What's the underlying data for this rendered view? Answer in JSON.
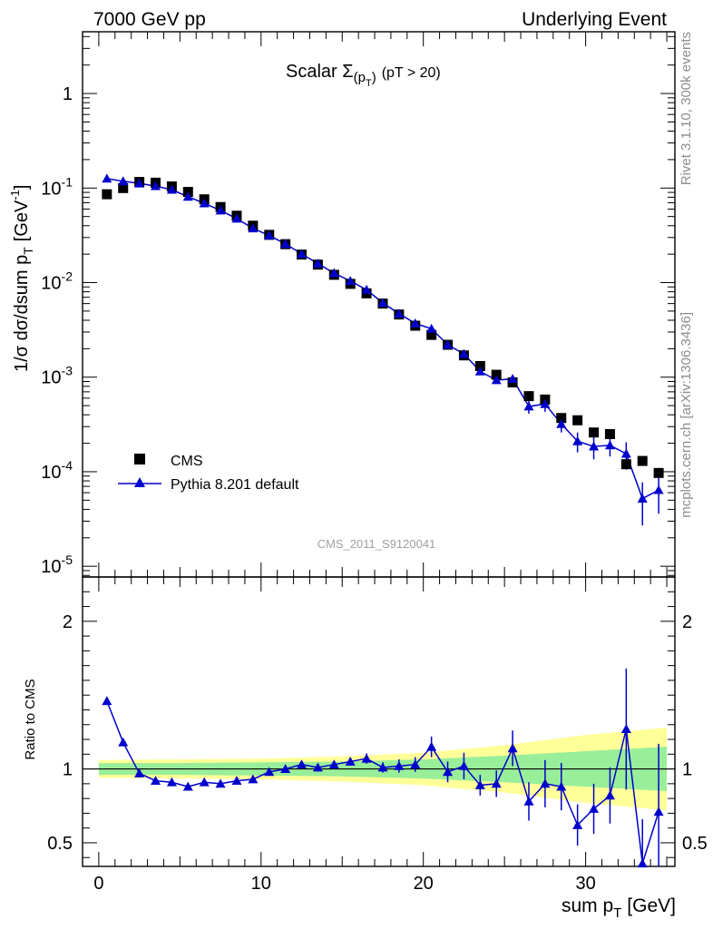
{
  "header": {
    "left": "7000 GeV pp",
    "right": "Underlying Event"
  },
  "plot_title": {
    "main": "Scalar Σ",
    "sub": "(p",
    "sub_t": "T",
    "sub_close": ")",
    "rest": "(pT > 20)"
  },
  "axis_labels": {
    "y_main": "1/σ dσ/dsum p",
    "y_main_sub": "T",
    "y_main_unit": "[GeV",
    "y_main_sup": "-1",
    "y_main_close": "]",
    "y_ratio": "Ratio to CMS",
    "x": "sum p",
    "x_sub": "T",
    "x_unit": "[GeV]"
  },
  "side_text": {
    "rivet": "Rivet 3.1.10,  300k events",
    "mcplots": "mcplots.cern.ch [arXiv:1306.3436]"
  },
  "watermark": "CMS_2011_S9120041",
  "legend": [
    {
      "name": "CMS",
      "marker": "square",
      "color": "#000000"
    },
    {
      "name": "Pythia 8.201 default",
      "marker": "triangle",
      "color": "#0000cc"
    }
  ],
  "chart_data": [
    {
      "type": "scatter",
      "scale": "log",
      "xlim": [
        -1,
        35.5
      ],
      "ylim": [
        7.7e-06,
        4.5
      ],
      "y_ticks": [
        {
          "v": 1,
          "base": "1",
          "exp": ""
        },
        {
          "v": 0.1,
          "base": "10",
          "exp": "-1"
        },
        {
          "v": 0.01,
          "base": "10",
          "exp": "-2"
        },
        {
          "v": 0.001,
          "base": "10",
          "exp": "-3"
        },
        {
          "v": 0.0001,
          "base": "10",
          "exp": "-4"
        },
        {
          "v": 1e-05,
          "base": "10",
          "exp": "-5"
        }
      ],
      "x": [
        0.5,
        1.5,
        2.5,
        3.5,
        4.5,
        5.5,
        6.5,
        7.5,
        8.5,
        9.5,
        10.5,
        11.5,
        12.5,
        13.5,
        14.5,
        15.5,
        16.5,
        17.5,
        18.5,
        19.5,
        20.5,
        21.5,
        22.5,
        23.5,
        24.5,
        25.5,
        26.5,
        27.5,
        28.5,
        29.5,
        30.5,
        31.5,
        32.5,
        33.5,
        34.5
      ],
      "series": [
        {
          "name": "CMS",
          "values": [
            0.086,
            0.1,
            0.116,
            0.114,
            0.104,
            0.091,
            0.076,
            0.063,
            0.051,
            0.04,
            0.032,
            0.0255,
            0.0198,
            0.0155,
            0.0121,
            0.0097,
            0.0077,
            0.006,
            0.0046,
            0.0035,
            0.0028,
            0.0022,
            0.0017,
            0.00131,
            0.00106,
            0.00088,
            0.00063,
            0.00058,
            0.00037,
            0.00035,
            0.00026,
            0.00025,
            0.00012,
            0.00013,
            9.7e-05
          ]
        },
        {
          "name": "Pythia 8.201 default",
          "values": [
            0.126,
            0.118,
            0.112,
            0.105,
            0.096,
            0.081,
            0.069,
            0.058,
            0.0475,
            0.0375,
            0.0315,
            0.0257,
            0.0201,
            0.0159,
            0.0126,
            0.0104,
            0.0084,
            0.0061,
            0.0047,
            0.0037,
            0.00325,
            0.0022,
            0.00176,
            0.00115,
            0.00093,
            0.00096,
            0.00049,
            0.00052,
            0.00032,
            0.00021,
            0.000185,
            0.00019,
            0.000155,
            5.2e-05,
            6.4e-05
          ],
          "err": [
            0,
            0,
            0,
            0,
            0,
            0,
            0,
            0,
            0,
            0,
            0,
            0,
            0,
            0,
            0,
            0,
            0,
            0,
            0,
            0,
            0,
            0,
            0,
            7e-05,
            6e-05,
            9e-05,
            8e-05,
            9e-05,
            6e-05,
            5e-05,
            5e-05,
            4.5e-05,
            5e-05,
            2.5e-05,
            2.8e-05
          ]
        }
      ]
    },
    {
      "type": "scatter",
      "scale": "linear",
      "xlim": [
        -1,
        35.5
      ],
      "ylim": [
        0.34,
        2.3
      ],
      "y_ticks": [
        {
          "v": 0.5,
          "label": "0.5"
        },
        {
          "v": 1,
          "label": "1"
        },
        {
          "v": 2,
          "label": "2"
        }
      ],
      "x_ticks": [
        0,
        10,
        20,
        30
      ],
      "x": [
        0.5,
        1.5,
        2.5,
        3.5,
        4.5,
        5.5,
        6.5,
        7.5,
        8.5,
        9.5,
        10.5,
        11.5,
        12.5,
        13.5,
        14.5,
        15.5,
        16.5,
        17.5,
        18.5,
        19.5,
        20.5,
        21.5,
        22.5,
        23.5,
        24.5,
        25.5,
        26.5,
        27.5,
        28.5,
        29.5,
        30.5,
        31.5,
        32.5,
        33.5,
        34.5
      ],
      "band": {
        "x": [
          0,
          5,
          10,
          15,
          20,
          25,
          30,
          35
        ],
        "inner": [
          0.04,
          0.04,
          0.045,
          0.05,
          0.065,
          0.09,
          0.12,
          0.15
        ],
        "outer": [
          0.06,
          0.065,
          0.07,
          0.085,
          0.11,
          0.16,
          0.23,
          0.28
        ]
      },
      "series": [
        {
          "name": "Pythia 8.201 default",
          "values": [
            1.46,
            1.18,
            0.97,
            0.92,
            0.91,
            0.88,
            0.91,
            0.9,
            0.92,
            0.93,
            0.98,
            1.0,
            1.03,
            1.01,
            1.03,
            1.05,
            1.07,
            1.01,
            1.02,
            1.03,
            1.15,
            0.98,
            1.02,
            0.89,
            0.9,
            1.14,
            0.78,
            0.9,
            0.88,
            0.62,
            0.73,
            0.82,
            1.27,
            0.36,
            0.71
          ],
          "err": [
            0,
            0,
            0,
            0,
            0,
            0,
            0,
            0,
            0,
            0,
            0,
            0,
            0,
            0,
            0,
            0.025,
            0.035,
            0.035,
            0.045,
            0.05,
            0.07,
            0.07,
            0.09,
            0.07,
            0.09,
            0.12,
            0.13,
            0.16,
            0.16,
            0.14,
            0.17,
            0.19,
            0.41,
            0.3,
            0.46
          ]
        }
      ]
    }
  ]
}
